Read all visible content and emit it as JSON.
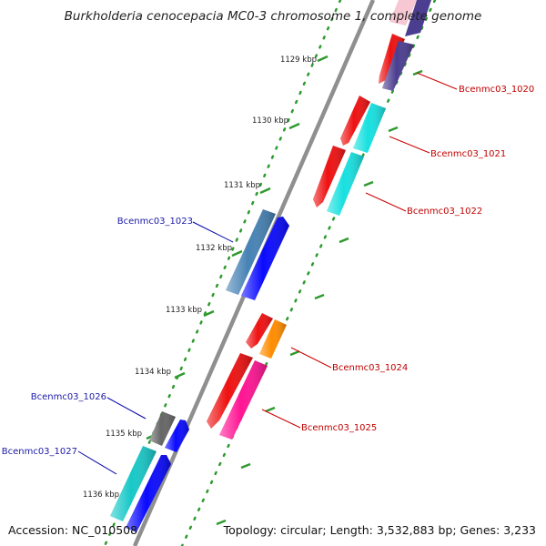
{
  "header": {
    "title": "Burkholderia cenocepacia MC0-3 chromosome 1, complete genome"
  },
  "footer": {
    "accession": "Accession: NC_010508",
    "topology": "Topology: circular; Length: 3,532,883 bp; Genes: 3,233"
  },
  "colors": {
    "backbone": "#8a8a8a",
    "tick_dots": "#2e9a2e",
    "label_forward": "#1a1aa8",
    "label_reverse": "#c00000"
  },
  "kbp_ticks": [
    "1129 kbp",
    "1130 kbp",
    "1131 kbp",
    "1132 kbp",
    "1133 kbp",
    "1134 kbp",
    "1135 kbp",
    "1136 kbp"
  ],
  "genes": {
    "reverse": [
      {
        "label": "Bcenmc03_1020",
        "color": "#4b3d8f"
      },
      {
        "label": "Bcenmc03_1021",
        "color": "#18e0e0"
      },
      {
        "label": "Bcenmc03_1022",
        "color": "#18e0e0"
      },
      {
        "label": "Bcenmc03_1024",
        "color": "#ff8c00"
      },
      {
        "label": "Bcenmc03_1025",
        "color": "#ff1493"
      }
    ],
    "forward": [
      {
        "label": "Bcenmc03_1023",
        "color": "#4682b4"
      },
      {
        "label": "Bcenmc03_1026",
        "color": "#666666"
      },
      {
        "label": "Bcenmc03_1027",
        "color": "#18c8c8"
      }
    ]
  }
}
